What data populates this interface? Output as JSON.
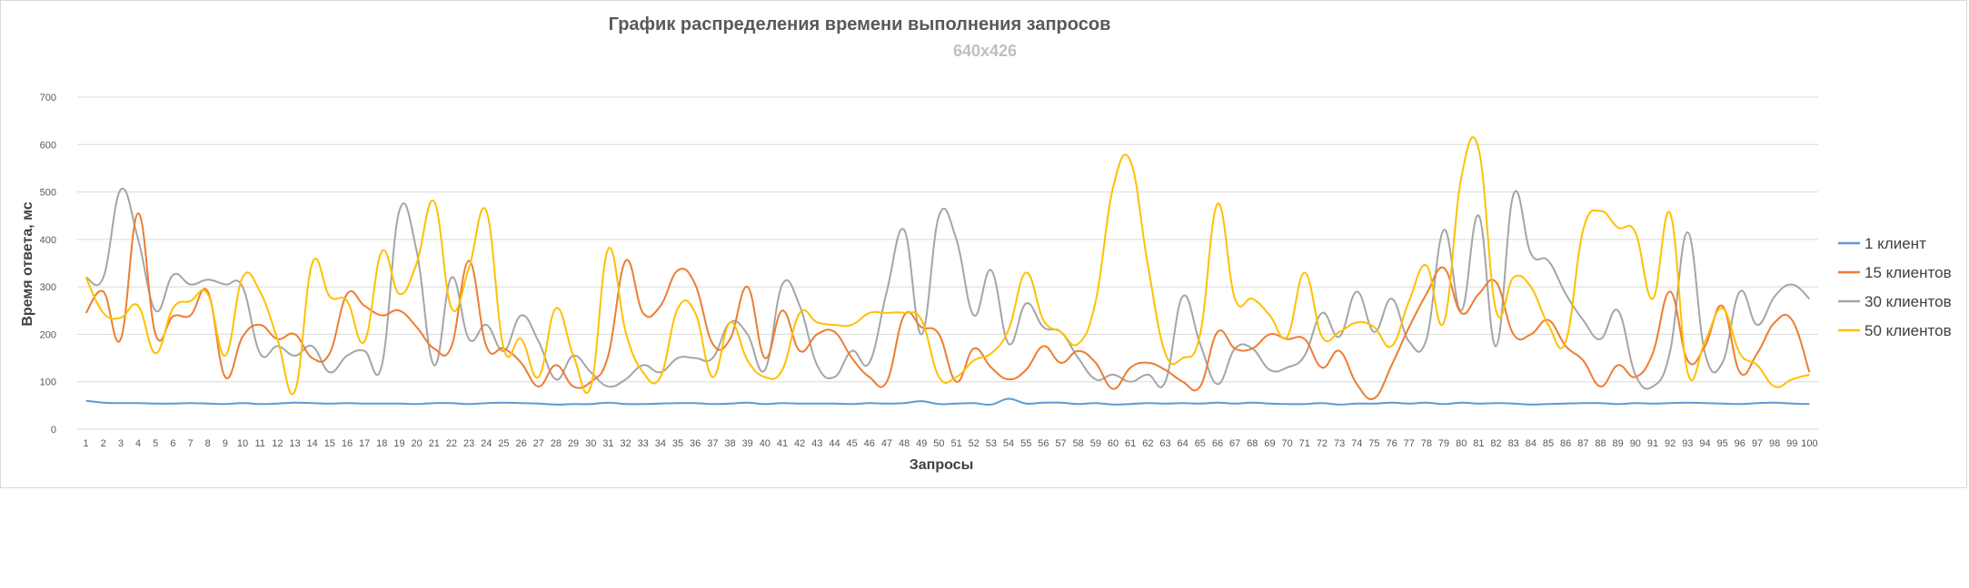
{
  "chart_data": {
    "type": "line",
    "title": "График распределения времени выполнения запросов",
    "subtitle": "640x426",
    "xlabel": "Запросы",
    "ylabel": "Время ответа, мс",
    "ylim": [
      0,
      700
    ],
    "yticks": [
      0,
      100,
      200,
      300,
      400,
      500,
      600,
      700
    ],
    "grid": true,
    "legend_position": "right",
    "x": [
      1,
      2,
      3,
      4,
      5,
      6,
      7,
      8,
      9,
      10,
      11,
      12,
      13,
      14,
      15,
      16,
      17,
      18,
      19,
      20,
      21,
      22,
      23,
      24,
      25,
      26,
      27,
      28,
      29,
      30,
      31,
      32,
      33,
      34,
      35,
      36,
      37,
      38,
      39,
      40,
      41,
      42,
      43,
      44,
      45,
      46,
      47,
      48,
      49,
      50,
      51,
      52,
      53,
      54,
      55,
      56,
      57,
      58,
      59,
      60,
      61,
      62,
      63,
      64,
      65,
      66,
      67,
      68,
      69,
      70,
      71,
      72,
      73,
      74,
      75,
      76,
      77,
      78,
      79,
      80,
      81,
      82,
      83,
      84,
      85,
      86,
      87,
      88,
      89,
      90,
      91,
      92,
      93,
      94,
      95,
      96,
      97,
      98,
      99,
      100
    ],
    "series": [
      {
        "name": "1 клиент",
        "color": "#5b9bd5",
        "values": [
          60,
          56,
          55,
          55,
          54,
          54,
          55,
          54,
          53,
          55,
          53,
          54,
          56,
          55,
          54,
          55,
          54,
          54,
          54,
          53,
          55,
          55,
          53,
          55,
          56,
          55,
          54,
          52,
          53,
          53,
          56,
          53,
          53,
          54,
          55,
          55,
          53,
          54,
          56,
          53,
          55,
          54,
          54,
          54,
          53,
          55,
          54,
          55,
          59,
          53,
          54,
          55,
          52,
          64,
          54,
          56,
          56,
          53,
          55,
          52,
          53,
          55,
          54,
          55,
          54,
          56,
          54,
          56,
          54,
          53,
          53,
          55,
          52,
          54,
          54,
          56,
          54,
          56,
          53,
          56,
          54,
          55,
          54,
          52,
          53,
          54,
          55,
          55,
          53,
          55,
          54,
          55,
          56,
          55,
          54,
          53,
          55,
          56,
          54,
          53
        ]
      },
      {
        "name": "15 клиентов",
        "color": "#ed7d31",
        "values": [
          245,
          290,
          190,
          455,
          200,
          238,
          240,
          290,
          110,
          195,
          220,
          190,
          200,
          150,
          160,
          285,
          260,
          240,
          250,
          215,
          170,
          175,
          355,
          175,
          170,
          140,
          90,
          135,
          90,
          100,
          155,
          355,
          245,
          260,
          335,
          305,
          180,
          190,
          300,
          150,
          250,
          165,
          200,
          205,
          150,
          110,
          100,
          240,
          215,
          200,
          100,
          170,
          130,
          105,
          125,
          175,
          140,
          165,
          140,
          85,
          130,
          140,
          125,
          100,
          90,
          205,
          170,
          170,
          200,
          190,
          190,
          130,
          165,
          95,
          65,
          135,
          215,
          285,
          340,
          245,
          285,
          310,
          200,
          200,
          230,
          175,
          145,
          90,
          135,
          110,
          160,
          290,
          145,
          175,
          260,
          120,
          160,
          225,
          230,
          120
        ]
      },
      {
        "name": "30 клиентов",
        "color": "#a5a5a5",
        "values": [
          320,
          320,
          505,
          400,
          250,
          325,
          305,
          315,
          305,
          300,
          160,
          175,
          155,
          175,
          120,
          155,
          165,
          135,
          460,
          375,
          135,
          320,
          190,
          220,
          165,
          240,
          185,
          105,
          155,
          120,
          90,
          105,
          135,
          120,
          150,
          150,
          150,
          225,
          200,
          125,
          305,
          260,
          135,
          110,
          165,
          140,
          290,
          420,
          200,
          450,
          400,
          240,
          335,
          180,
          265,
          215,
          205,
          150,
          105,
          115,
          100,
          115,
          100,
          280,
          180,
          95,
          170,
          170,
          125,
          130,
          155,
          245,
          195,
          290,
          205,
          275,
          185,
          190,
          420,
          250,
          450,
          175,
          495,
          370,
          355,
          285,
          230,
          190,
          250,
          115,
          90,
          165,
          415,
          160,
          140,
          290,
          220,
          280,
          305,
          275
        ]
      },
      {
        "name": "50 клиентов",
        "color": "#ffc000",
        "values": [
          320,
          245,
          235,
          260,
          160,
          255,
          270,
          285,
          155,
          320,
          290,
          190,
          80,
          350,
          280,
          270,
          185,
          375,
          285,
          350,
          480,
          255,
          340,
          460,
          170,
          190,
          110,
          255,
          155,
          90,
          380,
          205,
          120,
          110,
          255,
          245,
          110,
          225,
          145,
          110,
          125,
          245,
          225,
          220,
          220,
          245,
          245,
          245,
          230,
          110,
          110,
          145,
          160,
          210,
          330,
          230,
          205,
          180,
          270,
          510,
          565,
          345,
          160,
          150,
          200,
          475,
          275,
          275,
          240,
          195,
          330,
          195,
          205,
          225,
          215,
          175,
          270,
          345,
          225,
          530,
          590,
          250,
          320,
          300,
          220,
          185,
          420,
          460,
          425,
          415,
          275,
          455,
          120,
          185,
          255,
          160,
          135,
          90,
          105,
          115
        ]
      }
    ]
  }
}
